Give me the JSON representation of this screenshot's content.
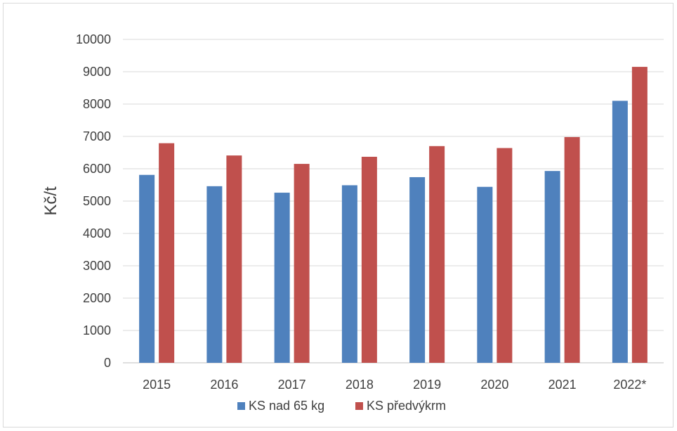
{
  "chart_data": {
    "type": "bar",
    "title": "",
    "xlabel": "",
    "ylabel": "Kč/t",
    "ylim": [
      0,
      10000
    ],
    "yticks": [
      0,
      1000,
      2000,
      3000,
      4000,
      5000,
      6000,
      7000,
      8000,
      9000,
      10000
    ],
    "grid": true,
    "legend_position": "bottom",
    "categories": [
      "2015",
      "2016",
      "2017",
      "2018",
      "2019",
      "2020",
      "2021",
      "2022*"
    ],
    "series": [
      {
        "name": "KS nad 65 kg",
        "color": "#4f81bd",
        "values": [
          5810,
          5460,
          5260,
          5490,
          5740,
          5440,
          5930,
          8100
        ]
      },
      {
        "name": "KS předvýkrm",
        "color": "#c0504d",
        "values": [
          6790,
          6410,
          6150,
          6370,
          6700,
          6640,
          6980,
          9150
        ]
      }
    ]
  }
}
